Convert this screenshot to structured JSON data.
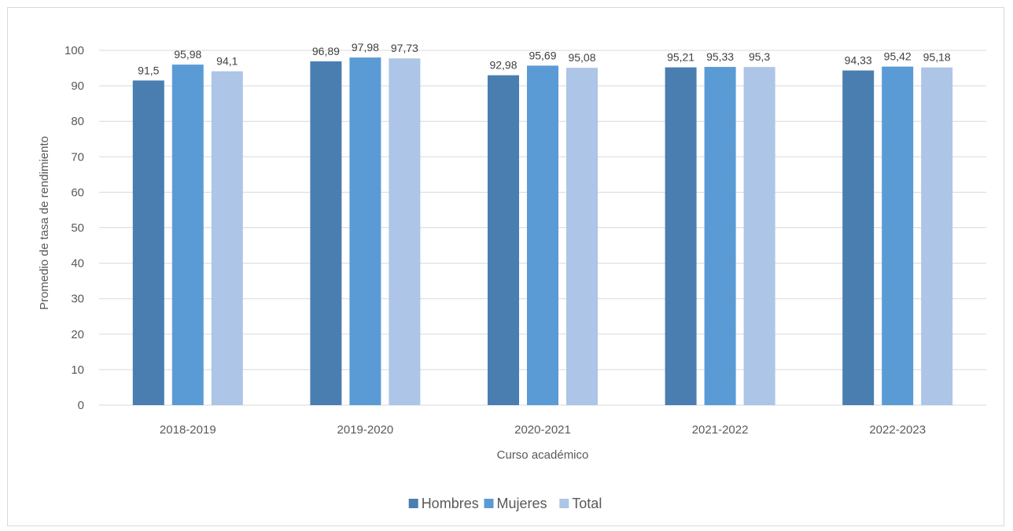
{
  "chart_data": {
    "type": "bar",
    "title": "",
    "xlabel": "Curso académico",
    "ylabel": "Promedio de tasa de rendimiento",
    "categories": [
      "2018-2019",
      "2019-2020",
      "2020-2021",
      "2021-2022",
      "2022-2023"
    ],
    "series": [
      {
        "name": "Hombres",
        "color": "#4a7eb0",
        "values": [
          91.5,
          96.89,
          92.98,
          95.21,
          94.33
        ],
        "labels": [
          "91,5",
          "96,89",
          "92,98",
          "95,21",
          "94,33"
        ]
      },
      {
        "name": "Mujeres",
        "color": "#5b9bd5",
        "values": [
          95.98,
          97.98,
          95.69,
          95.33,
          95.42
        ],
        "labels": [
          "95,98",
          "97,98",
          "95,69",
          "95,33",
          "95,42"
        ]
      },
      {
        "name": "Total",
        "color": "#adc5e6",
        "values": [
          94.1,
          97.73,
          95.08,
          95.3,
          95.18
        ],
        "labels": [
          "94,1",
          "97,73",
          "95,08",
          "95,3",
          "95,18"
        ]
      }
    ],
    "ylim": [
      0,
      100
    ],
    "yticks": [
      0,
      10,
      20,
      30,
      40,
      50,
      60,
      70,
      80,
      90,
      100
    ],
    "grid": true,
    "legend_position": "bottom"
  }
}
